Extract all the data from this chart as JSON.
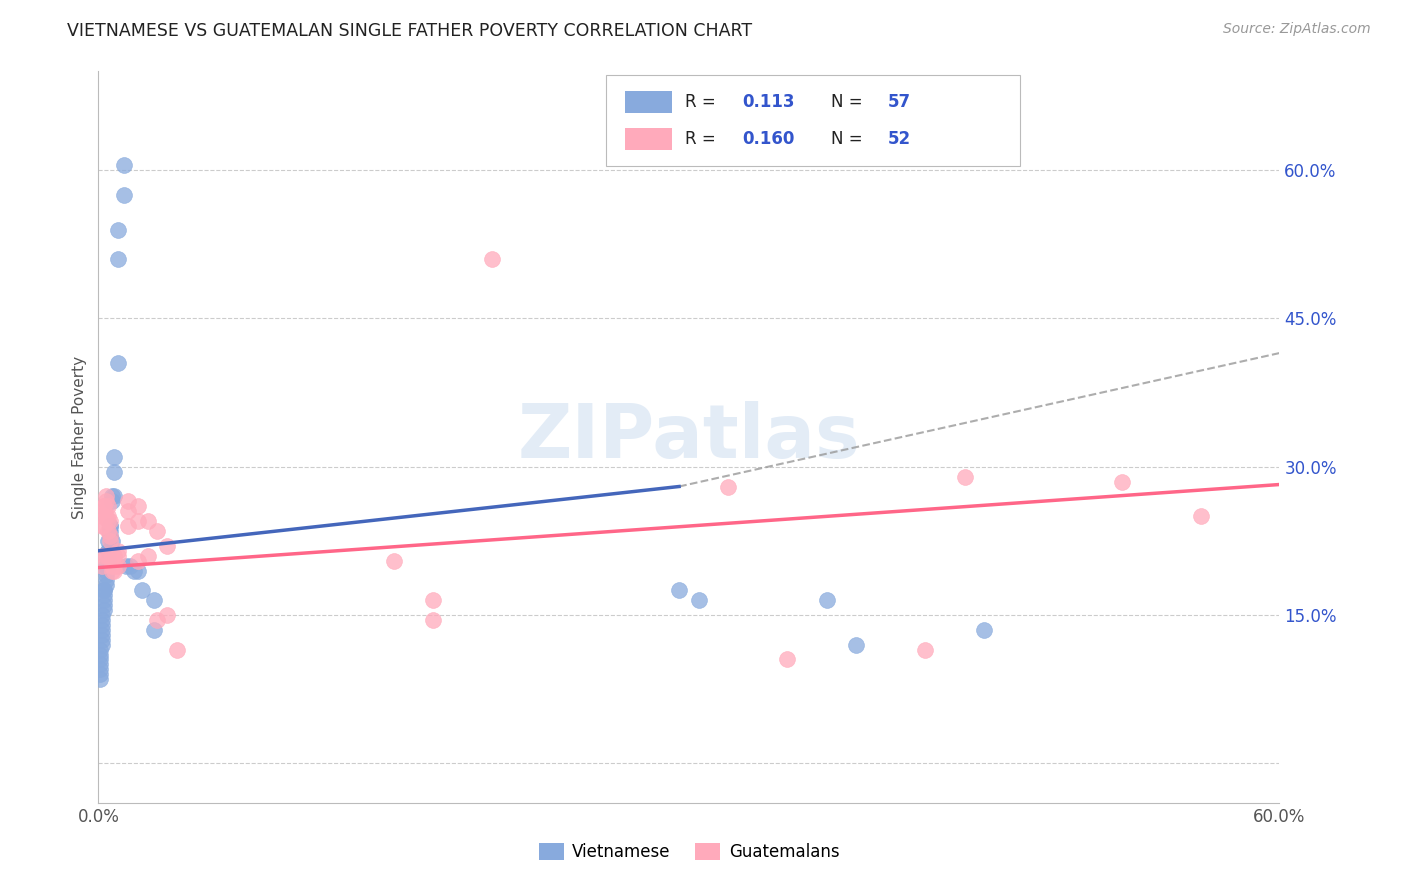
{
  "title": "VIETNAMESE VS GUATEMALAN SINGLE FATHER POVERTY CORRELATION CHART",
  "source": "Source: ZipAtlas.com",
  "ylabel": "Single Father Poverty",
  "legend1_label": "Vietnamese",
  "legend2_label": "Guatemalans",
  "R1": "0.113",
  "N1": "57",
  "R2": "0.160",
  "N2": "52",
  "color_blue": "#88AADD",
  "color_pink": "#FFAABB",
  "color_blue_line": "#4466BB",
  "color_pink_line": "#FF6688",
  "color_value": "#3355CC",
  "watermark": "ZIPatlas",
  "xlim": [
    0.0,
    0.6
  ],
  "ylim": [
    -0.04,
    0.7
  ],
  "yticks": [
    0.0,
    0.15,
    0.3,
    0.45,
    0.6
  ],
  "xticks": [
    0.0,
    0.15,
    0.3,
    0.45,
    0.6
  ],
  "viet_x": [
    0.013,
    0.013,
    0.01,
    0.01,
    0.01,
    0.008,
    0.008,
    0.008,
    0.007,
    0.007,
    0.007,
    0.006,
    0.006,
    0.006,
    0.006,
    0.005,
    0.005,
    0.005,
    0.005,
    0.005,
    0.004,
    0.004,
    0.004,
    0.004,
    0.004,
    0.003,
    0.003,
    0.003,
    0.003,
    0.003,
    0.003,
    0.002,
    0.002,
    0.002,
    0.002,
    0.002,
    0.002,
    0.002,
    0.001,
    0.001,
    0.001,
    0.001,
    0.001,
    0.001,
    0.001,
    0.014,
    0.016,
    0.018,
    0.02,
    0.022,
    0.028,
    0.028,
    0.295,
    0.305,
    0.37,
    0.385,
    0.45
  ],
  "viet_y": [
    0.605,
    0.575,
    0.54,
    0.51,
    0.405,
    0.31,
    0.295,
    0.27,
    0.27,
    0.265,
    0.225,
    0.24,
    0.24,
    0.235,
    0.23,
    0.225,
    0.215,
    0.215,
    0.205,
    0.2,
    0.2,
    0.195,
    0.19,
    0.185,
    0.18,
    0.175,
    0.175,
    0.17,
    0.165,
    0.16,
    0.155,
    0.15,
    0.145,
    0.14,
    0.135,
    0.13,
    0.125,
    0.12,
    0.115,
    0.11,
    0.105,
    0.1,
    0.095,
    0.09,
    0.085,
    0.2,
    0.2,
    0.195,
    0.195,
    0.175,
    0.165,
    0.135,
    0.175,
    0.165,
    0.165,
    0.12,
    0.135
  ],
  "guat_x": [
    0.01,
    0.01,
    0.01,
    0.008,
    0.008,
    0.008,
    0.007,
    0.007,
    0.007,
    0.006,
    0.006,
    0.006,
    0.005,
    0.005,
    0.005,
    0.005,
    0.005,
    0.004,
    0.004,
    0.004,
    0.004,
    0.003,
    0.003,
    0.003,
    0.003,
    0.002,
    0.002,
    0.002,
    0.002,
    0.015,
    0.015,
    0.015,
    0.02,
    0.02,
    0.02,
    0.025,
    0.025,
    0.03,
    0.03,
    0.035,
    0.035,
    0.04,
    0.15,
    0.17,
    0.17,
    0.2,
    0.32,
    0.35,
    0.42,
    0.44,
    0.52,
    0.56
  ],
  "guat_y": [
    0.215,
    0.21,
    0.2,
    0.21,
    0.2,
    0.195,
    0.21,
    0.2,
    0.195,
    0.245,
    0.23,
    0.225,
    0.26,
    0.25,
    0.245,
    0.235,
    0.21,
    0.27,
    0.265,
    0.25,
    0.21,
    0.26,
    0.26,
    0.255,
    0.24,
    0.25,
    0.24,
    0.21,
    0.2,
    0.265,
    0.255,
    0.24,
    0.26,
    0.245,
    0.205,
    0.245,
    0.21,
    0.235,
    0.145,
    0.22,
    0.15,
    0.115,
    0.205,
    0.165,
    0.145,
    0.51,
    0.28,
    0.105,
    0.115,
    0.29,
    0.285,
    0.25
  ],
  "blue_line_x": [
    0.0,
    0.295
  ],
  "blue_line_y": [
    0.215,
    0.28
  ],
  "pink_line_x": [
    0.0,
    0.6
  ],
  "pink_line_y": [
    0.198,
    0.282
  ],
  "dash_line_x": [
    0.295,
    0.6
  ],
  "dash_line_y": [
    0.28,
    0.415
  ]
}
